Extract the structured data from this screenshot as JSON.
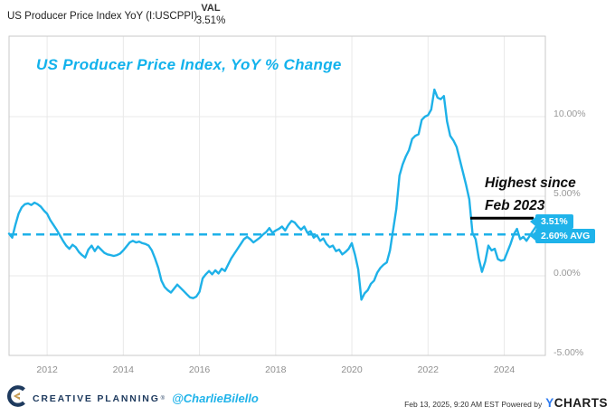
{
  "header": {
    "series_label": "US Producer Price Index YoY (I:USCPPI)",
    "val_label": "VAL",
    "val_value": "3.51%"
  },
  "chart_data": {
    "type": "line",
    "title": "US Producer Price Index, YoY % Change",
    "series": [
      {
        "name": "US Producer Price Index YoY",
        "start": "2011-01",
        "frequency": "monthly",
        "values": [
          2.65,
          2.4,
          3.2,
          3.9,
          4.3,
          4.5,
          4.55,
          4.45,
          4.6,
          4.5,
          4.35,
          4.1,
          3.9,
          3.5,
          3.2,
          2.9,
          2.55,
          2.2,
          1.9,
          1.7,
          1.95,
          1.8,
          1.5,
          1.3,
          1.15,
          1.65,
          1.9,
          1.55,
          1.85,
          1.65,
          1.45,
          1.35,
          1.3,
          1.25,
          1.3,
          1.4,
          1.6,
          1.85,
          2.1,
          2.2,
          2.1,
          2.15,
          2.05,
          2.0,
          1.9,
          1.6,
          1.1,
          0.5,
          -0.3,
          -0.7,
          -0.9,
          -1.05,
          -0.8,
          -0.55,
          -0.75,
          -0.95,
          -1.15,
          -1.35,
          -1.4,
          -1.3,
          -1.0,
          -0.15,
          0.1,
          0.3,
          0.1,
          0.35,
          0.15,
          0.45,
          0.3,
          0.7,
          1.1,
          1.4,
          1.7,
          2.0,
          2.3,
          2.45,
          2.3,
          2.1,
          2.25,
          2.4,
          2.6,
          2.75,
          3.0,
          2.7,
          2.85,
          2.95,
          3.1,
          2.85,
          3.2,
          3.45,
          3.35,
          3.1,
          2.9,
          3.1,
          2.7,
          2.8,
          2.4,
          2.55,
          2.2,
          2.35,
          2.0,
          1.8,
          1.9,
          1.55,
          1.65,
          1.35,
          1.5,
          1.7,
          2.05,
          1.3,
          0.4,
          -1.5,
          -1.1,
          -0.9,
          -0.5,
          -0.3,
          0.2,
          0.5,
          0.7,
          0.85,
          1.6,
          2.9,
          4.2,
          6.3,
          7.0,
          7.5,
          7.9,
          8.6,
          8.8,
          8.9,
          9.8,
          10.0,
          10.1,
          10.45,
          11.7,
          11.2,
          11.1,
          11.3,
          9.7,
          8.8,
          8.5,
          8.1,
          7.3,
          6.5,
          5.7,
          4.8,
          2.7,
          2.3,
          1.1,
          0.25,
          0.9,
          1.9,
          1.6,
          1.7,
          1.05,
          0.95,
          1.0,
          1.5,
          2.0,
          2.6,
          2.95,
          2.3,
          2.45,
          2.2,
          2.5,
          2.8,
          3.1,
          3.0,
          3.51
        ]
      }
    ],
    "last_point": {
      "date": "2025-01",
      "value": 3.51,
      "label": "3.51%"
    },
    "average": {
      "value": 2.6,
      "label": "2.60% AVG",
      "style": "dashed"
    },
    "annotation": {
      "line1": "Highest since",
      "line2": "Feb 2023"
    },
    "y_axis": {
      "side": "right",
      "ticks": [
        10,
        5,
        0,
        -5
      ],
      "tick_labels": [
        "10.00%",
        "5.00%",
        "0.00%",
        "-5.00%"
      ],
      "range": [
        -5,
        15.06
      ]
    },
    "x_axis": {
      "ticks": [
        2012,
        2014,
        2016,
        2018,
        2020,
        2022,
        2024
      ],
      "tick_labels": [
        "2012",
        "2014",
        "2016",
        "2018",
        "2020",
        "2022",
        "2024"
      ],
      "range": [
        2011,
        2025.08
      ]
    },
    "grid": true,
    "colors": {
      "line": "#1eb1e8",
      "avg_line": "#1eb1e8",
      "badge": "#1fb3ea",
      "annotation": "#000000",
      "grid": "#e9e9e9",
      "border": "#c9c9c9"
    }
  },
  "footer": {
    "brand": "CREATIVE PLANNING",
    "reg_mark": "®",
    "handle": "@CharlieBilello",
    "timestamp": "Feb 13, 2025, 9:20 AM EST",
    "powered_by": "Powered by",
    "ycharts_y": "Y",
    "ycharts_charts": "CHARTS"
  }
}
